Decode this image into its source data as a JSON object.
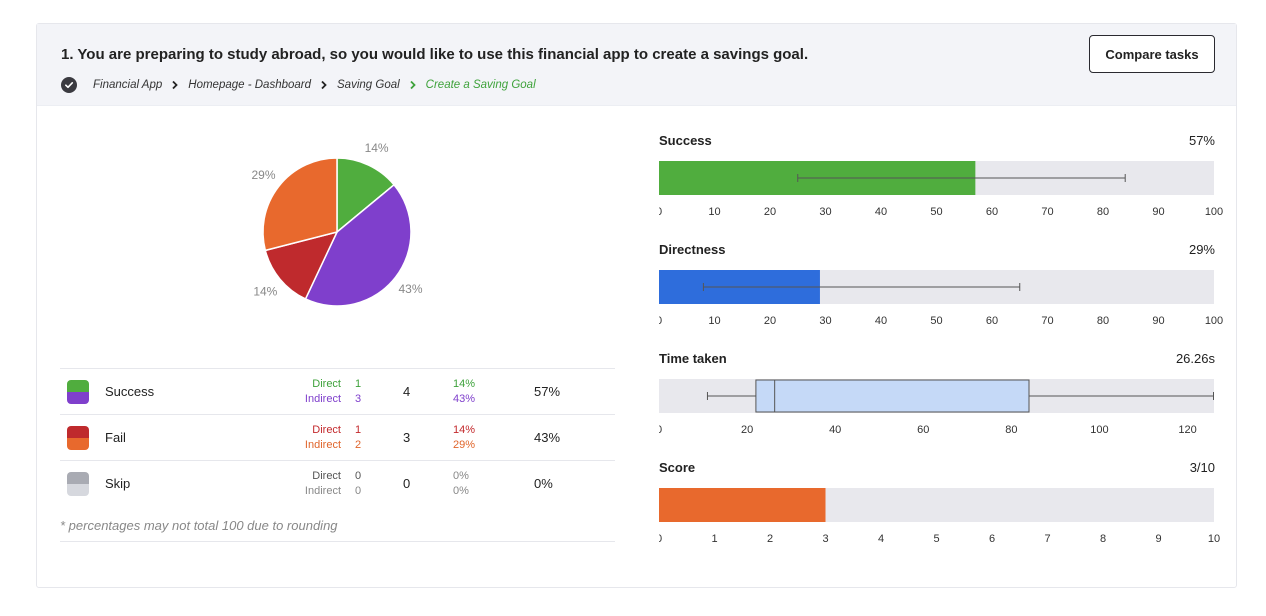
{
  "task": {
    "title": "1. You are preparing to study abroad, so you would like to use this financial app to create a savings goal.",
    "compare_label": "Compare tasks",
    "breadcrumb": [
      "Financial App",
      "Homepage - Dashboard",
      "Saving Goal",
      "Create a Saving Goal"
    ]
  },
  "colors": {
    "success_direct": "#50ad3e",
    "success_indirect": "#7f3fcc",
    "fail_direct": "#bf2a2d",
    "fail_indirect": "#e8692d",
    "skip_direct": "#a9abb3",
    "skip_indirect": "#d6d8de",
    "directness": "#2e6ddc",
    "track": "#e8e8ed",
    "box": "#c5d9f7"
  },
  "chart_data": [
    {
      "type": "pie",
      "slices": [
        {
          "name": "Success Direct",
          "value": 14,
          "label": "14%",
          "color": "#50ad3e"
        },
        {
          "name": "Success Indirect",
          "value": 43,
          "label": "43%",
          "color": "#7f3fcc"
        },
        {
          "name": "Fail Direct",
          "value": 14,
          "label": "14%",
          "color": "#bf2a2d"
        },
        {
          "name": "Fail Indirect",
          "value": 29,
          "label": "29%",
          "color": "#e8692d"
        }
      ]
    },
    {
      "type": "bar",
      "title": "Success",
      "display_value": "57%",
      "value": 57,
      "ci": [
        25,
        84
      ],
      "xlim": [
        0,
        100
      ],
      "ticks": [
        0,
        10,
        20,
        30,
        40,
        50,
        60,
        70,
        80,
        90,
        100
      ],
      "color": "#50ad3e"
    },
    {
      "type": "bar",
      "title": "Directness",
      "display_value": "29%",
      "value": 29,
      "ci": [
        8,
        65
      ],
      "xlim": [
        0,
        100
      ],
      "ticks": [
        0,
        10,
        20,
        30,
        40,
        50,
        60,
        70,
        80,
        90,
        100
      ],
      "color": "#2e6ddc"
    },
    {
      "type": "boxplot",
      "title": "Time taken",
      "display_value": "26.26s",
      "whisker_low": 11,
      "q1": 22,
      "median": 26.26,
      "q3": 84,
      "whisker_high": 126,
      "xlim": [
        0,
        126
      ],
      "ticks": [
        0,
        20,
        40,
        60,
        80,
        100,
        120
      ]
    },
    {
      "type": "bar",
      "title": "Score",
      "display_value": "3/10",
      "value": 3,
      "xlim": [
        0,
        10
      ],
      "ticks": [
        0,
        1,
        2,
        3,
        4,
        5,
        6,
        7,
        8,
        9,
        10
      ],
      "color": "#e8692d"
    }
  ],
  "legend": {
    "rows": [
      {
        "label": "Success",
        "direct_label": "Direct",
        "indirect_label": "Indirect",
        "direct": "1",
        "indirect": "3",
        "total": "4",
        "direct_pct": "14%",
        "indirect_pct": "43%",
        "pct": "57%"
      },
      {
        "label": "Fail",
        "direct_label": "Direct",
        "indirect_label": "Indirect",
        "direct": "1",
        "indirect": "2",
        "total": "3",
        "direct_pct": "14%",
        "indirect_pct": "29%",
        "pct": "43%"
      },
      {
        "label": "Skip",
        "direct_label": "Direct",
        "indirect_label": "Indirect",
        "direct": "0",
        "indirect": "0",
        "total": "0",
        "direct_pct": "0%",
        "indirect_pct": "0%",
        "pct": "0%"
      }
    ],
    "note": "* percentages may not total 100 due to rounding"
  }
}
